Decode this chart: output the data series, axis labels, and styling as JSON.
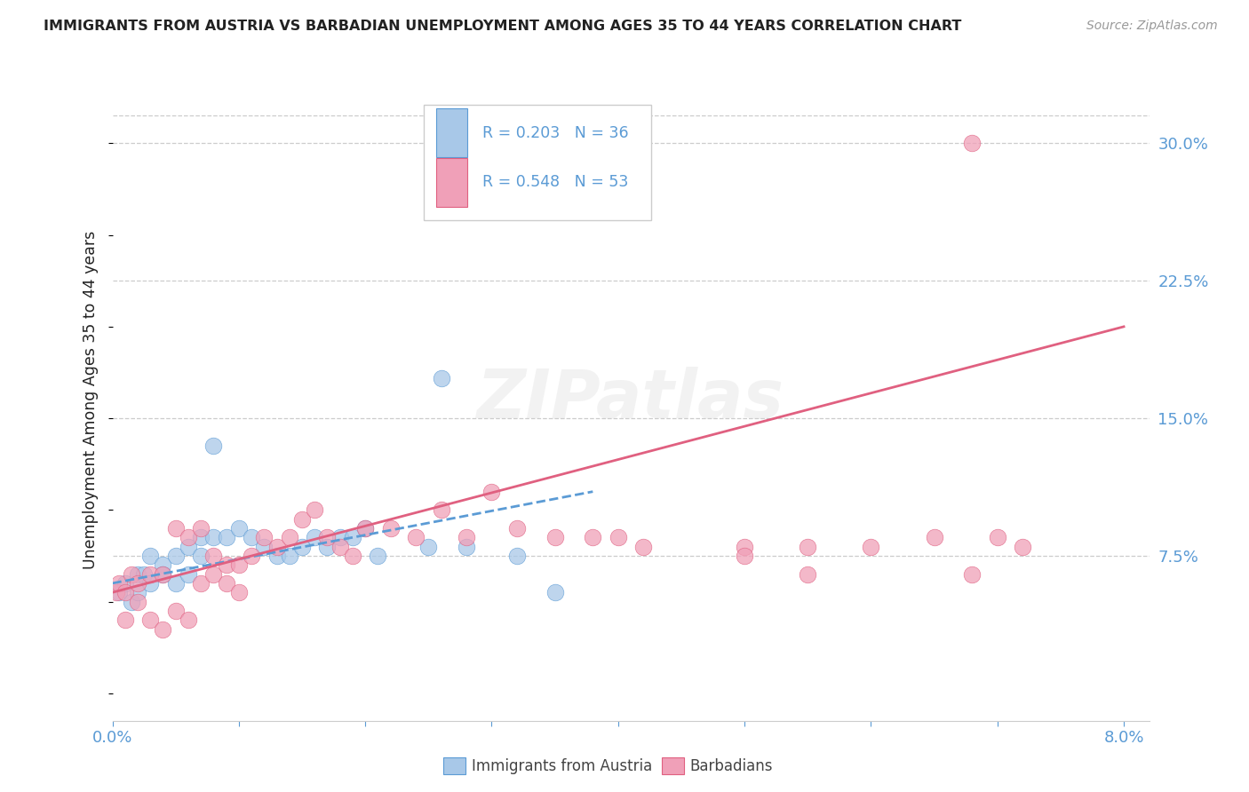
{
  "title": "IMMIGRANTS FROM AUSTRIA VS BARBADIAN UNEMPLOYMENT AMONG AGES 35 TO 44 YEARS CORRELATION CHART",
  "source": "Source: ZipAtlas.com",
  "ylabel": "Unemployment Among Ages 35 to 44 years",
  "xlim": [
    0.0,
    0.082
  ],
  "ylim": [
    -0.015,
    0.335
  ],
  "xtick_positions": [
    0.0,
    0.01,
    0.02,
    0.03,
    0.04,
    0.05,
    0.06,
    0.07,
    0.08
  ],
  "xticklabels": [
    "0.0%",
    "",
    "",
    "",
    "",
    "",
    "",
    "",
    "8.0%"
  ],
  "ytick_positions": [
    0.075,
    0.15,
    0.225,
    0.3
  ],
  "yticklabels_right": [
    "7.5%",
    "15.0%",
    "22.5%",
    "30.0%"
  ],
  "top_hline": 0.315,
  "color_blue_fill": "#a8c8e8",
  "color_blue_edge": "#5b9bd5",
  "color_pink_fill": "#f0a0b8",
  "color_pink_edge": "#e06080",
  "color_axis": "#5b9bd5",
  "color_grid": "#cccccc",
  "bg_color": "#ffffff",
  "color_title": "#222222",
  "color_source": "#999999",
  "watermark": "ZIPatlas",
  "label_austria": "Immigrants from Austria",
  "label_barbadian": "Barbadians",
  "legend_r1": "R = 0.203",
  "legend_n1": "N = 36",
  "legend_r2": "R = 0.548",
  "legend_n2": "N = 53",
  "austria_trend_x": [
    0.0,
    0.038
  ],
  "austria_trend_y": [
    0.06,
    0.11
  ],
  "barbadian_trend_x": [
    0.0,
    0.08
  ],
  "barbadian_trend_y": [
    0.055,
    0.2
  ],
  "austria_pts_x": [
    0.0005,
    0.001,
    0.0015,
    0.002,
    0.002,
    0.0025,
    0.003,
    0.003,
    0.004,
    0.004,
    0.005,
    0.005,
    0.006,
    0.006,
    0.007,
    0.007,
    0.008,
    0.008,
    0.009,
    0.01,
    0.011,
    0.012,
    0.013,
    0.014,
    0.015,
    0.016,
    0.017,
    0.018,
    0.019,
    0.02,
    0.021,
    0.025,
    0.026,
    0.028,
    0.032,
    0.035
  ],
  "austria_pts_y": [
    0.055,
    0.06,
    0.05,
    0.065,
    0.055,
    0.065,
    0.06,
    0.075,
    0.07,
    0.065,
    0.075,
    0.06,
    0.08,
    0.065,
    0.085,
    0.075,
    0.135,
    0.085,
    0.085,
    0.09,
    0.085,
    0.08,
    0.075,
    0.075,
    0.08,
    0.085,
    0.08,
    0.085,
    0.085,
    0.09,
    0.075,
    0.08,
    0.172,
    0.08,
    0.075,
    0.055
  ],
  "barbadian_pts_x": [
    0.0003,
    0.0005,
    0.001,
    0.001,
    0.0015,
    0.002,
    0.002,
    0.003,
    0.003,
    0.004,
    0.004,
    0.005,
    0.005,
    0.006,
    0.006,
    0.007,
    0.007,
    0.008,
    0.008,
    0.009,
    0.009,
    0.01,
    0.01,
    0.011,
    0.012,
    0.013,
    0.014,
    0.015,
    0.016,
    0.017,
    0.018,
    0.019,
    0.02,
    0.022,
    0.024,
    0.026,
    0.028,
    0.03,
    0.032,
    0.035,
    0.038,
    0.04,
    0.042,
    0.05,
    0.055,
    0.05,
    0.055,
    0.06,
    0.065,
    0.068,
    0.07,
    0.072,
    0.068
  ],
  "barbadian_pts_y": [
    0.055,
    0.06,
    0.055,
    0.04,
    0.065,
    0.06,
    0.05,
    0.065,
    0.04,
    0.065,
    0.035,
    0.09,
    0.045,
    0.085,
    0.04,
    0.09,
    0.06,
    0.075,
    0.065,
    0.07,
    0.06,
    0.07,
    0.055,
    0.075,
    0.085,
    0.08,
    0.085,
    0.095,
    0.1,
    0.085,
    0.08,
    0.075,
    0.09,
    0.09,
    0.085,
    0.1,
    0.085,
    0.11,
    0.09,
    0.085,
    0.085,
    0.085,
    0.08,
    0.08,
    0.08,
    0.075,
    0.065,
    0.08,
    0.085,
    0.065,
    0.085,
    0.08,
    0.3
  ]
}
